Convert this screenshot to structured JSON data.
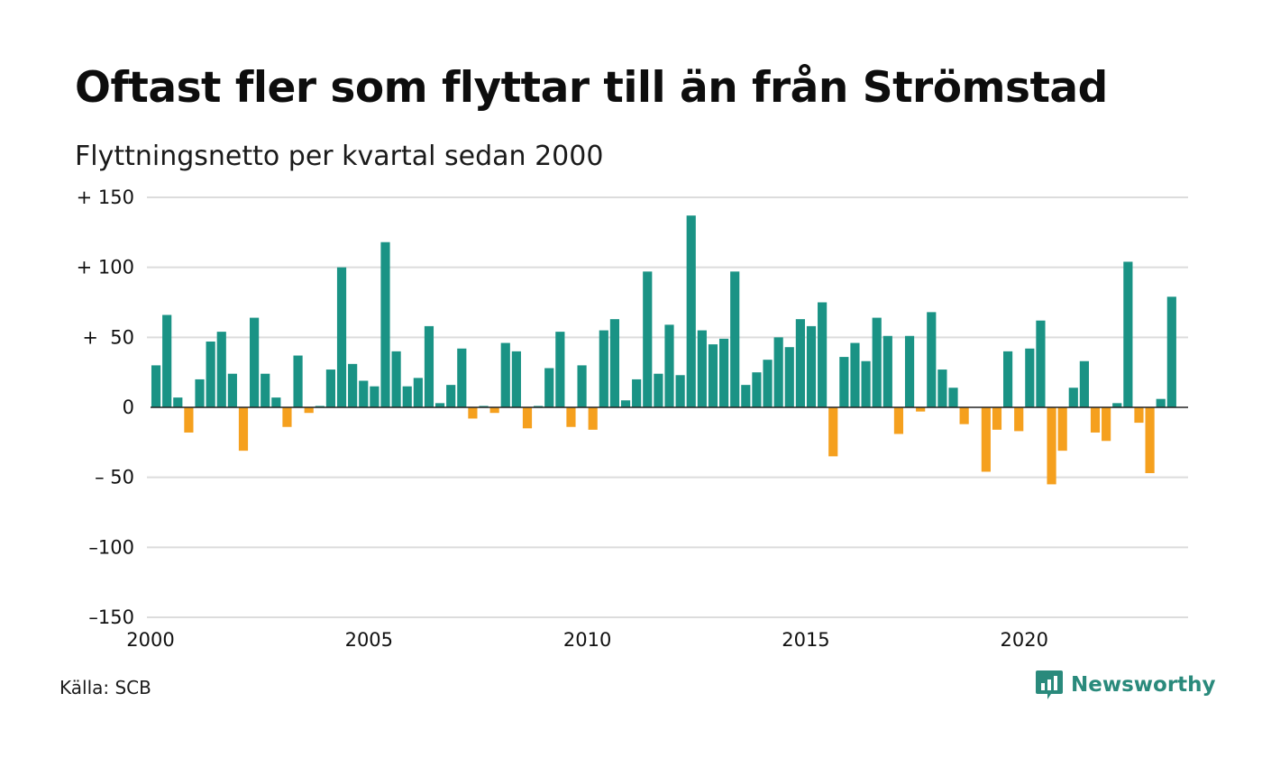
{
  "title": "Oftast fler som flyttar till än från Strömstad",
  "subtitle": "Flyttningsnetto per kvartal sedan 2000",
  "source": "Källa: SCB",
  "brand": {
    "name": "Newsworthy",
    "icon": "newsworthy-logo-icon",
    "color": "#2a8a7c"
  },
  "colors": {
    "positive": "#1a9385",
    "negative": "#f5a01e",
    "grid": "#dcdcdc",
    "zero_line": "#222222"
  },
  "chart_data": {
    "type": "bar",
    "title": "Oftast fler som flyttar till än från Strömstad",
    "subtitle": "Flyttningsnetto per kvartal sedan 2000",
    "ylim": [
      -150,
      150
    ],
    "xlim": [
      2000,
      2023.75
    ],
    "grid": true,
    "y_ticks": [
      150,
      100,
      50,
      0,
      -50,
      -100,
      -150
    ],
    "y_tick_labels": [
      "+ 150",
      "+ 100",
      "+  50",
      "0",
      "– 50",
      "–100",
      "–150"
    ],
    "x_ticks": [
      2000,
      2005,
      2010,
      2015,
      2020
    ],
    "x_tick_labels": [
      "2000",
      "2005",
      "2010",
      "2015",
      "2020"
    ],
    "bars_per_year": 4,
    "start_year": 2000,
    "values": [
      30,
      66,
      7,
      -18,
      20,
      47,
      54,
      24,
      -31,
      64,
      24,
      7,
      -14,
      37,
      -4,
      1,
      27,
      100,
      31,
      19,
      15,
      118,
      40,
      15,
      21,
      58,
      3,
      16,
      42,
      -8,
      1,
      -4,
      46,
      40,
      -15,
      1,
      28,
      54,
      -14,
      30,
      -16,
      55,
      63,
      5,
      20,
      97,
      24,
      59,
      23,
      137,
      55,
      45,
      49,
      97,
      16,
      25,
      34,
      50,
      43,
      63,
      58,
      75,
      -35,
      36,
      46,
      33,
      64,
      51,
      -19,
      51,
      -3,
      68,
      27,
      14,
      -12,
      0,
      -46,
      -16,
      40,
      -17,
      42,
      62,
      -55,
      -31,
      14,
      33,
      -18,
      -24,
      3,
      104,
      -11,
      -47,
      6,
      79
    ]
  }
}
